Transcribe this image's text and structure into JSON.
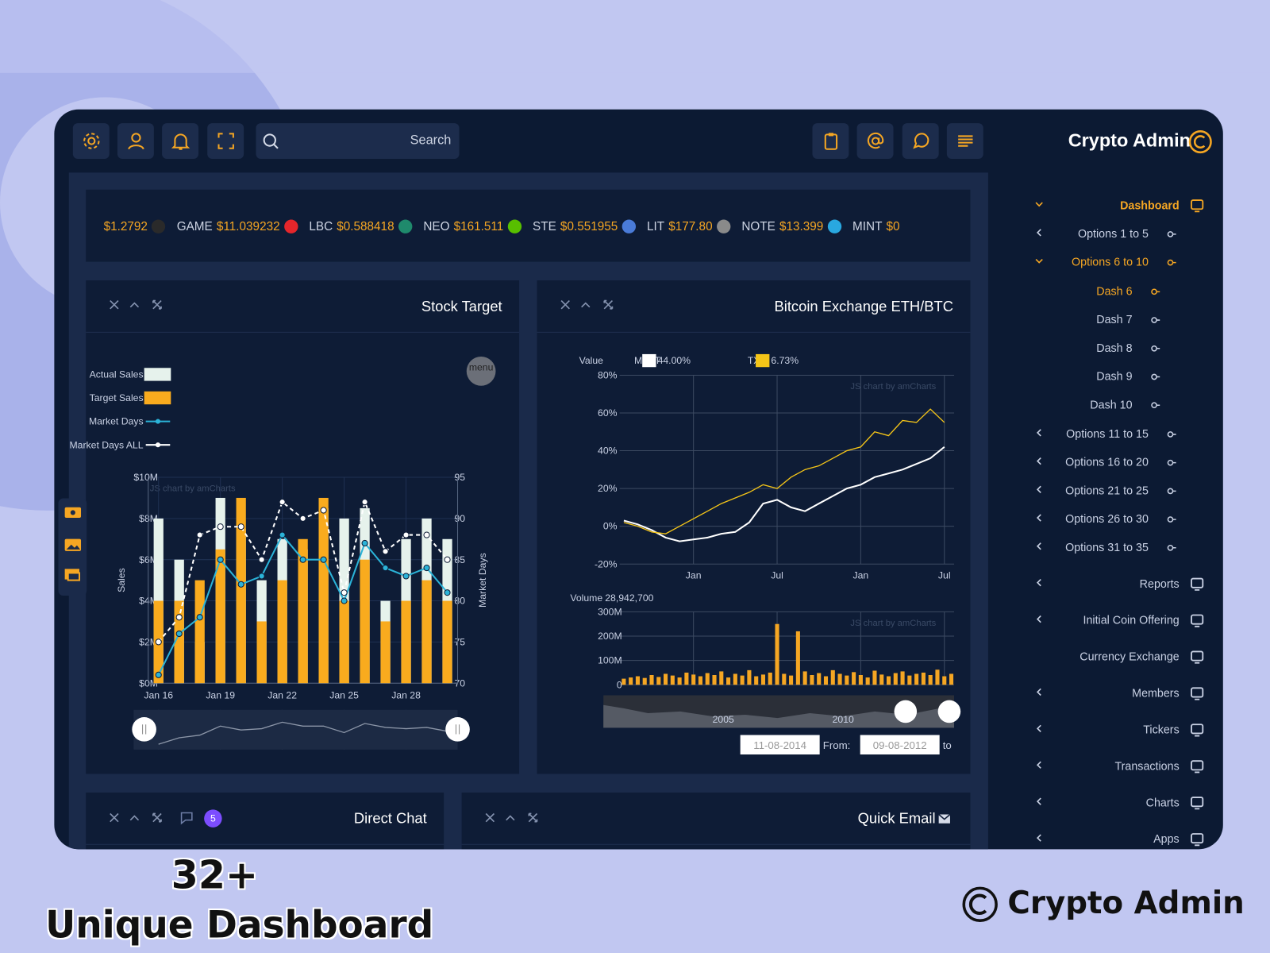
{
  "header": {
    "search_placeholder": "Search",
    "brand": "Crypto Admin"
  },
  "ticker": [
    {
      "price": "$1.2792",
      "color": "#2a2a2a"
    },
    {
      "symbol": "GAME",
      "price": "$11.039232",
      "color": "#e5262b"
    },
    {
      "symbol": "LBC",
      "price": "$0.588418",
      "color": "#1f8a6c"
    },
    {
      "symbol": "NEO",
      "price": "$161.511",
      "color": "#58bf00"
    },
    {
      "symbol": "STE",
      "price": "$0.551955",
      "color": "#4a7bd8"
    },
    {
      "symbol": "LIT",
      "price": "$177.80",
      "color": "#8a8a8a"
    },
    {
      "symbol": "NOTE",
      "price": "$13.399",
      "color": "#29a8e0"
    },
    {
      "symbol": "MINT",
      "price": "$0"
    }
  ],
  "sidebar": {
    "items": [
      {
        "label": "Dashboard",
        "level": 0,
        "active": true,
        "children": true,
        "expanded": true
      },
      {
        "label": "Options 1 to 5",
        "level": 1,
        "children": true
      },
      {
        "label": "Options 6 to 10",
        "level": 1,
        "active": true,
        "children": true,
        "expanded": true
      },
      {
        "label": "Dash 6",
        "level": 2,
        "active": true
      },
      {
        "label": "Dash 7",
        "level": 2
      },
      {
        "label": "Dash 8",
        "level": 2
      },
      {
        "label": "Dash 9",
        "level": 2
      },
      {
        "label": "Dash 10",
        "level": 2
      },
      {
        "label": "Options 11 to 15",
        "level": 1,
        "children": true
      },
      {
        "label": "Options 16 to 20",
        "level": 1,
        "children": true
      },
      {
        "label": "Options 21 to 25",
        "level": 1,
        "children": true
      },
      {
        "label": "Options 26 to 30",
        "level": 1,
        "children": true
      },
      {
        "label": "Options 31 to 35",
        "level": 1,
        "children": true
      },
      {
        "label": "Reports",
        "level": 0,
        "children": true
      },
      {
        "label": "Initial Coin Offering",
        "level": 0,
        "children": true
      },
      {
        "label": "Currency Exchange",
        "level": 0
      },
      {
        "label": "Members",
        "level": 0,
        "children": true
      },
      {
        "label": "Tickers",
        "level": 0,
        "children": true
      },
      {
        "label": "Transactions",
        "level": 0,
        "children": true
      },
      {
        "label": "Charts",
        "level": 0,
        "children": true
      },
      {
        "label": "Apps",
        "level": 0,
        "children": true
      }
    ]
  },
  "panels": {
    "stock": {
      "title": "Stock Target"
    },
    "bitcoin": {
      "title": "Bitcoin Exchange ETH/BTC"
    },
    "direct_chat": {
      "title": "Direct Chat",
      "badge": 5
    },
    "quick_email": {
      "title": "Quick Email"
    }
  },
  "promo": {
    "count": "32+",
    "caption": "Unique Dashboard",
    "brand": "Crypto Admin"
  },
  "chart_data": [
    {
      "type": "bar-line",
      "y_label": "Sales",
      "y2_label": "Market Days",
      "watermark": "JS chart by amCharts",
      "menu": "menu",
      "categories": [
        "Jan 16",
        null,
        null,
        "Jan 19",
        null,
        null,
        "Jan 22",
        null,
        null,
        "Jan 25",
        null,
        null,
        "Jan 28",
        null,
        null
      ],
      "ylim": [
        0,
        10000000
      ],
      "yticks": [
        {
          "value": 0,
          "label": "$0M"
        },
        {
          "value": 2000000,
          "label": "$2M"
        },
        {
          "value": 4000000,
          "label": "$4M"
        },
        {
          "value": 6000000,
          "label": "$6M"
        },
        {
          "value": 8000000,
          "label": "$8M"
        },
        {
          "value": 10000000,
          "label": "$10M"
        }
      ],
      "y2lim": [
        70,
        95
      ],
      "y2ticks": [
        70,
        75,
        80,
        85,
        90,
        95
      ],
      "grid": true,
      "series": [
        {
          "name": "Actual Sales",
          "kind": "bar",
          "color": "#e6f2ec",
          "values": [
            8000000,
            6000000,
            2000000,
            9000000,
            7500000,
            5000000,
            7000000,
            6500000,
            8500000,
            8000000,
            8500000,
            4000000,
            7000000,
            8000000,
            7000000
          ]
        },
        {
          "name": "Target Sales",
          "kind": "bar",
          "color": "#f9ab1e",
          "values": [
            4000000,
            4000000,
            5000000,
            6500000,
            9000000,
            3000000,
            5000000,
            7000000,
            9000000,
            4000000,
            6000000,
            3000000,
            4000000,
            5000000,
            4000000
          ]
        },
        {
          "name": "Market Days",
          "kind": "line",
          "axis": "y2",
          "color": "#2bb3d8",
          "values": [
            71,
            76,
            78,
            85,
            82,
            83,
            88,
            85,
            85,
            80,
            87,
            84,
            83,
            84,
            81
          ]
        },
        {
          "name": "Market Days ALL",
          "kind": "line",
          "axis": "y2",
          "dashed": true,
          "color": "#ffffff",
          "values": [
            75,
            78,
            88,
            89,
            89,
            85,
            92,
            90,
            91,
            81,
            92,
            86,
            88,
            88,
            85
          ]
        }
      ]
    },
    {
      "type": "line",
      "legend_title": "Value",
      "watermark": "JS chart by amCharts",
      "x": [
        -5,
        -4,
        -3,
        -2,
        -1,
        0,
        1,
        2,
        3,
        4,
        5,
        6,
        7,
        8,
        9,
        10,
        11,
        12,
        13,
        14,
        15,
        16,
        17,
        18
      ],
      "xlim": [
        -5.3,
        18.7
      ],
      "xticks": [
        {
          "value": 0,
          "label": "Jan"
        },
        {
          "value": 6,
          "label": "Jul"
        },
        {
          "value": 12,
          "label": "Jan"
        },
        {
          "value": 18,
          "label": "Jul"
        }
      ],
      "ylim": [
        -20,
        80
      ],
      "yticks": [
        {
          "value": -20,
          "label": "-20%"
        },
        {
          "value": 0,
          "label": "0%"
        },
        {
          "value": 20,
          "label": "20%"
        },
        {
          "value": 40,
          "label": "40%"
        },
        {
          "value": 60,
          "label": "60%"
        },
        {
          "value": 80,
          "label": "80%"
        }
      ],
      "grid": true,
      "series": [
        {
          "name": "MSFT",
          "color": "#ffffff",
          "legend_value": "44.00%",
          "values": [
            3,
            1,
            -2,
            -6,
            -8,
            -7,
            -6,
            -4,
            -3,
            2,
            12,
            14,
            10,
            8,
            12,
            16,
            20,
            22,
            26,
            28,
            30,
            33,
            36,
            42
          ]
        },
        {
          "name": "TXN",
          "color": "#f5c518",
          "legend_value": "6.73%",
          "values": [
            2,
            0,
            -3,
            -4,
            0,
            4,
            8,
            12,
            15,
            18,
            22,
            20,
            26,
            30,
            32,
            36,
            40,
            42,
            50,
            48,
            56,
            55,
            62,
            55
          ]
        }
      ]
    },
    {
      "type": "bar",
      "title": "Volume",
      "readout": "28,942,700",
      "watermark": "JS chart by amCharts",
      "color": "#f5a623",
      "x": [
        -5,
        -4.5,
        -4,
        -3.5,
        -3,
        -2.5,
        -2,
        -1.5,
        -1,
        -0.5,
        0,
        0.5,
        1,
        1.5,
        2,
        2.5,
        3,
        3.5,
        4,
        4.5,
        5,
        5.5,
        6,
        6.5,
        7,
        7.5,
        8,
        8.5,
        9,
        9.5,
        10,
        10.5,
        11,
        11.5,
        12,
        12.5,
        13,
        13.5,
        14,
        14.5,
        15,
        15.5,
        16,
        16.5,
        17,
        17.5,
        18,
        18.5
      ],
      "xlim": [
        -5.3,
        18.7
      ],
      "ylim": [
        0,
        300000000
      ],
      "yticks": [
        0,
        {
          "value": 100000000,
          "label": "100M"
        },
        {
          "value": 200000000,
          "label": "200M"
        },
        {
          "value": 300000000,
          "label": "300M"
        }
      ],
      "grid": true,
      "values": [
        25000000,
        30000000,
        35000000,
        28000000,
        40000000,
        32000000,
        45000000,
        38000000,
        30000000,
        50000000,
        42000000,
        35000000,
        48000000,
        40000000,
        55000000,
        30000000,
        45000000,
        38000000,
        60000000,
        35000000,
        42000000,
        50000000,
        250000000,
        45000000,
        38000000,
        220000000,
        55000000,
        40000000,
        48000000,
        35000000,
        60000000,
        45000000,
        38000000,
        52000000,
        40000000,
        30000000,
        58000000,
        42000000,
        35000000,
        48000000,
        55000000,
        38000000,
        45000000,
        50000000,
        40000000,
        62000000,
        35000000,
        45000000
      ],
      "scroller_labels": [
        "2005",
        "2010"
      ],
      "range": {
        "start": "11-08-2014",
        "from_label": "From:",
        "end": "09-08-2012",
        "to_label": "to"
      }
    }
  ]
}
